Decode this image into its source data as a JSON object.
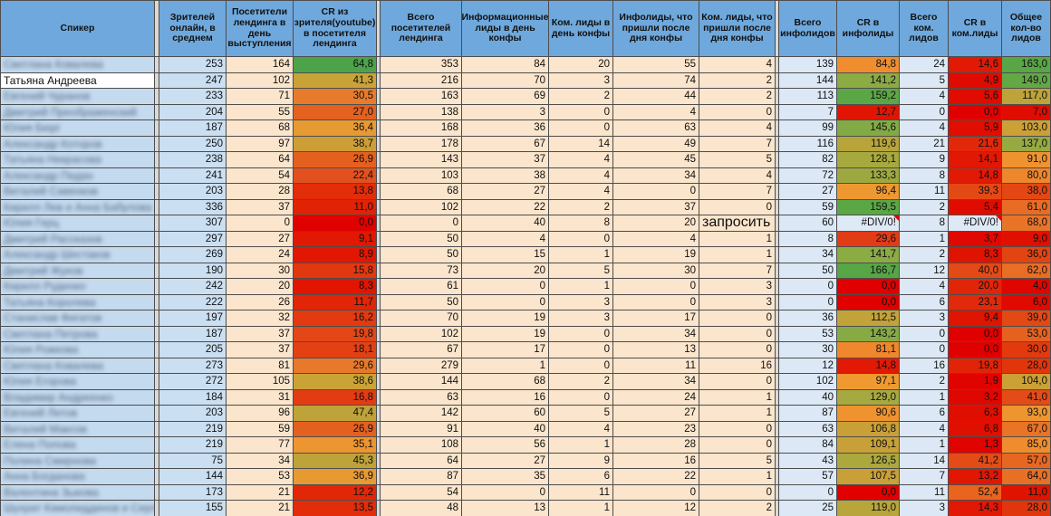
{
  "table": {
    "columns": [
      "Спикер",
      "Зрителей онлайн, в среднем",
      "Посетители лендинга в день выступления",
      "CR из зрителя(youtube) в посетителя лендинга",
      "Всего посетителей лендинга",
      "Информационные лиды в день конфы",
      "Ком. лиды в день конфы",
      "Инфолиды, что пришли после дня конфы",
      "Ком. лиды, что пришли после дня конфы",
      "Всего инфолидов",
      "CR в инфолиды",
      "Всего ком. лидов",
      "CR  в ком.лиды",
      "Общее кол-во лидов"
    ],
    "special_values": {
      "error": "#DIV/0!",
      "request": "запросить"
    },
    "rows": [
      {
        "name": "Светлана Ковалева",
        "blurred": true,
        "values": [
          "253",
          "164",
          "64,8",
          "353",
          "84",
          "20",
          "55",
          "4",
          "139",
          "84,8",
          "24",
          "14,6",
          "163,0"
        ],
        "colors": {
          "cr1": "#4CA349",
          "cr2": "#F08E2F",
          "cr3": "#E11905",
          "total": "#58A646"
        }
      },
      {
        "name": "Татьяна Андреева",
        "blurred": false,
        "values": [
          "247",
          "102",
          "41,3",
          "216",
          "70",
          "3",
          "74",
          "2",
          "144",
          "141,2",
          "5",
          "4,9",
          "149,0"
        ],
        "colors": {
          "cr1": "#C9A338",
          "cr2": "#8BAB43",
          "cr3": "#E00B00",
          "total": "#64A846"
        }
      },
      {
        "name": "Евгений Чуранов",
        "blurred": true,
        "values": [
          "233",
          "71",
          "30,5",
          "163",
          "69",
          "2",
          "44",
          "2",
          "113",
          "159,2",
          "4",
          "5,6",
          "117,0"
        ],
        "colors": {
          "cr1": "#E87B2B",
          "cr2": "#5CA745",
          "cr3": "#E00C00",
          "total": "#BCA43A"
        }
      },
      {
        "name": "Дмитрий Преображенский",
        "blurred": true,
        "values": [
          "204",
          "55",
          "27,0",
          "138",
          "3",
          "0",
          "4",
          "0",
          "7",
          "12,7",
          "0",
          "0,0",
          "7,0"
        ],
        "colors": {
          "cr1": "#E4611F",
          "cr2": "#E11503",
          "cr3": "#E00000",
          "total": "#E00C00"
        }
      },
      {
        "name": "Юлия Бюрг",
        "blurred": true,
        "values": [
          "187",
          "68",
          "36,4",
          "168",
          "36",
          "0",
          "63",
          "4",
          "99",
          "145,6",
          "4",
          "5,9",
          "103,0"
        ],
        "colors": {
          "cr1": "#E89A32",
          "cr2": "#82AB45",
          "cr3": "#E00D00",
          "total": "#CCA037"
        }
      },
      {
        "name": "Александр Которов",
        "blurred": true,
        "values": [
          "250",
          "97",
          "38,7",
          "178",
          "67",
          "14",
          "49",
          "7",
          "116",
          "119,6",
          "21",
          "21,6",
          "137,0"
        ],
        "colors": {
          "cr1": "#CE9E36",
          "cr2": "#B7A53B",
          "cr3": "#E1280A",
          "total": "#96AA41"
        }
      },
      {
        "name": "Татьяна Некрасова",
        "blurred": true,
        "values": [
          "238",
          "64",
          "26,9",
          "143",
          "37",
          "4",
          "45",
          "5",
          "82",
          "128,1",
          "9",
          "14,1",
          "91,0"
        ],
        "colors": {
          "cr1": "#E4601F",
          "cr2": "#A7A93E",
          "cr3": "#E11804",
          "total": "#EF9330"
        }
      },
      {
        "name": "Александр Педан",
        "blurred": true,
        "values": [
          "241",
          "54",
          "22,4",
          "103",
          "38",
          "4",
          "34",
          "4",
          "72",
          "133,3",
          "8",
          "14,8",
          "80,0"
        ],
        "colors": {
          "cr1": "#E35020",
          "cr2": "#9DA940",
          "cr3": "#E11905",
          "total": "#EE862C"
        }
      },
      {
        "name": "Виталий Савенков",
        "blurred": true,
        "values": [
          "203",
          "28",
          "13,8",
          "68",
          "27",
          "4",
          "0",
          "7",
          "27",
          "96,4",
          "11",
          "39,3",
          "38,0"
        ],
        "colors": {
          "cr1": "#E22D0A",
          "cr2": "#EE9831",
          "cr3": "#E34915",
          "total": "#E34714"
        }
      },
      {
        "name": "Кирилл Лев и Анна Бабулова",
        "blurred": true,
        "values": [
          "336",
          "37",
          "11,0",
          "102",
          "22",
          "2",
          "37",
          "0",
          "59",
          "159,5",
          "2",
          "5,4",
          "61,0"
        ],
        "colors": {
          "cr1": "#E12204",
          "cr2": "#5CA745",
          "cr3": "#E00C00",
          "total": "#E86C25"
        }
      },
      {
        "name": "Юлия Герц",
        "blurred": true,
        "values": [
          "307",
          "0",
          "0,0",
          "0",
          "40",
          "8",
          "20",
          "запросить",
          "60",
          "#DIV/0!",
          "8",
          "#DIV/0!",
          "68,0"
        ],
        "colors": {
          "cr1": "#E00000",
          "cr2": null,
          "cr3": null,
          "total": "#E97428"
        }
      },
      {
        "name": "Дмитрий Рассказов",
        "blurred": true,
        "values": [
          "297",
          "27",
          "9,1",
          "50",
          "4",
          "0",
          "4",
          "1",
          "8",
          "29,6",
          "1",
          "3,7",
          "9,0"
        ],
        "colors": {
          "cr1": "#E11802",
          "cr2": "#E13C16",
          "cr3": "#E00800",
          "total": "#E01000"
        }
      },
      {
        "name": "Александр Шестаков",
        "blurred": true,
        "values": [
          "269",
          "24",
          "8,9",
          "50",
          "15",
          "1",
          "19",
          "1",
          "34",
          "141,7",
          "2",
          "8,3",
          "36,0"
        ],
        "colors": {
          "cr1": "#E11702",
          "cr2": "#8BAB43",
          "cr3": "#E01300",
          "total": "#E24412"
        }
      },
      {
        "name": "Дмитрий Жуков",
        "blurred": true,
        "values": [
          "190",
          "30",
          "15,8",
          "73",
          "20",
          "5",
          "30",
          "7",
          "50",
          "166,7",
          "12",
          "40,0",
          "62,0"
        ],
        "colors": {
          "cr1": "#E23810",
          "cr2": "#57A646",
          "cr3": "#E44A16",
          "total": "#E86D25"
        }
      },
      {
        "name": "Кирилл Руденко",
        "blurred": true,
        "values": [
          "242",
          "20",
          "8,3",
          "61",
          "0",
          "1",
          "0",
          "3",
          "0",
          "0,0",
          "4",
          "20,0",
          "4,0"
        ],
        "colors": {
          "cr1": "#E11500",
          "cr2": "#E00000",
          "cr3": "#E12509",
          "total": "#E00600"
        }
      },
      {
        "name": "Татьяна Королева",
        "blurred": true,
        "values": [
          "222",
          "26",
          "11,7",
          "50",
          "0",
          "3",
          "0",
          "3",
          "0",
          "0,0",
          "6",
          "23,1",
          "6,0"
        ],
        "colors": {
          "cr1": "#E12506",
          "cr2": "#E00000",
          "cr3": "#E12A0B",
          "total": "#E00A00"
        }
      },
      {
        "name": "Станислав Фигатов",
        "blurred": true,
        "values": [
          "197",
          "32",
          "16,2",
          "70",
          "19",
          "3",
          "17",
          "0",
          "36",
          "112,5",
          "3",
          "9,4",
          "39,0"
        ],
        "colors": {
          "cr1": "#E33A11",
          "cr2": "#C2A339",
          "cr3": "#E01500",
          "total": "#E34815"
        }
      },
      {
        "name": "Светлана Петрова",
        "blurred": true,
        "values": [
          "187",
          "37",
          "19,8",
          "102",
          "19",
          "0",
          "34",
          "0",
          "53",
          "143,2",
          "0",
          "0,0",
          "53,0"
        ],
        "colors": {
          "cr1": "#E34617",
          "cr2": "#87AB44",
          "cr3": "#E00000",
          "total": "#E66120"
        }
      },
      {
        "name": "Юлия Рожкова",
        "blurred": true,
        "values": [
          "205",
          "37",
          "18,1",
          "67",
          "17",
          "0",
          "13",
          "0",
          "30",
          "81,1",
          "0",
          "0,0",
          "30,0"
        ],
        "colors": {
          "cr1": "#E34013",
          "cr2": "#EF872D",
          "cr3": "#E00000",
          "total": "#E23A0E"
        }
      },
      {
        "name": "Светлана Ковалева",
        "blurred": true,
        "values": [
          "273",
          "81",
          "29,6",
          "279",
          "1",
          "0",
          "11",
          "16",
          "12",
          "14,8",
          "16",
          "19,8",
          "28,0"
        ],
        "colors": {
          "cr1": "#E8782A",
          "cr2": "#E11905",
          "cr3": "#E12408",
          "total": "#E1360C"
        }
      },
      {
        "name": "Юлия Егорова",
        "blurred": true,
        "values": [
          "272",
          "105",
          "38,6",
          "144",
          "68",
          "2",
          "34",
          "0",
          "102",
          "97,1",
          "2",
          "1,9",
          "104,0"
        ],
        "colors": {
          "cr1": "#C9A338",
          "cr2": "#EE9A31",
          "cr3": "#E00400",
          "total": "#CBA037"
        }
      },
      {
        "name": "Владимир Андреенко",
        "blurred": true,
        "values": [
          "184",
          "31",
          "16,8",
          "63",
          "16",
          "0",
          "24",
          "1",
          "40",
          "129,0",
          "1",
          "3,2",
          "41,0"
        ],
        "colors": {
          "cr1": "#E33C12",
          "cr2": "#A6A93F",
          "cr3": "#E00700",
          "total": "#E34B17"
        }
      },
      {
        "name": "Евгений Летов",
        "blurred": true,
        "values": [
          "203",
          "96",
          "47,4",
          "142",
          "60",
          "5",
          "27",
          "1",
          "87",
          "90,6",
          "6",
          "6,3",
          "93,0"
        ],
        "colors": {
          "cr1": "#BEA23A",
          "cr2": "#EF9230",
          "cr3": "#E00E00",
          "total": "#EE9530"
        }
      },
      {
        "name": "Виталий Максов",
        "blurred": true,
        "values": [
          "219",
          "59",
          "26,9",
          "91",
          "40",
          "4",
          "23",
          "0",
          "63",
          "106,8",
          "4",
          "6,8",
          "67,0"
        ],
        "colors": {
          "cr1": "#E4601F",
          "cr2": "#C9A037",
          "cr3": "#E01000",
          "total": "#E97327"
        }
      },
      {
        "name": "Елена Попова",
        "blurred": true,
        "values": [
          "219",
          "77",
          "35,1",
          "108",
          "56",
          "1",
          "28",
          "0",
          "84",
          "109,1",
          "1",
          "1,3",
          "85,0"
        ],
        "colors": {
          "cr1": "#ED9530",
          "cr2": "#C7A137",
          "cr3": "#E00300",
          "total": "#EF8D2E"
        }
      },
      {
        "name": "Полина Смирнова",
        "blurred": true,
        "values": [
          "75",
          "34",
          "45,3",
          "64",
          "27",
          "9",
          "16",
          "5",
          "43",
          "126,5",
          "14",
          "41,2",
          "57,0"
        ],
        "colors": {
          "cr1": "#BEA23A",
          "cr2": "#ABA83D",
          "cr3": "#E44C17",
          "total": "#E76722"
        }
      },
      {
        "name": "Анна Богданова",
        "blurred": true,
        "values": [
          "144",
          "53",
          "36,9",
          "87",
          "35",
          "6",
          "22",
          "1",
          "57",
          "107,5",
          "7",
          "13,2",
          "64,0"
        ],
        "colors": {
          "cr1": "#E89A32",
          "cr2": "#C9A037",
          "cr3": "#E11703",
          "total": "#E86F26"
        }
      },
      {
        "name": "Валентина Зыкова",
        "blurred": true,
        "values": [
          "173",
          "21",
          "12,2",
          "54",
          "0",
          "11",
          "0",
          "0",
          "0",
          "0,0",
          "11",
          "52,4",
          "11,0"
        ],
        "colors": {
          "cr1": "#E12708",
          "cr2": "#E00000",
          "cr3": "#E8641F",
          "total": "#E01300"
        }
      },
      {
        "name": "Шухрат Камолиддинов и Сергей",
        "blurred": true,
        "values": [
          "155",
          "21",
          "13,5",
          "48",
          "13",
          "1",
          "12",
          "2",
          "25",
          "119,0",
          "3",
          "14,3",
          "28,0"
        ],
        "colors": {
          "cr1": "#E22C0A",
          "cr2": "#B8A53B",
          "cr3": "#E11804",
          "total": "#E1360C"
        }
      }
    ]
  },
  "colors": {
    "header_bg": "#6FA8DC",
    "name_col_bg": "#C4DAEF",
    "viewers_col_bg": "#CBDFF2",
    "leads_col_bg": "#FBE5CC",
    "totals_col_bg": "#DCE8F5",
    "gap_bg": "#D9D9D9",
    "grid_line": "#4d4d4d",
    "error_cell_bg": "#DEE9F6",
    "error_marker": "#E00000"
  }
}
